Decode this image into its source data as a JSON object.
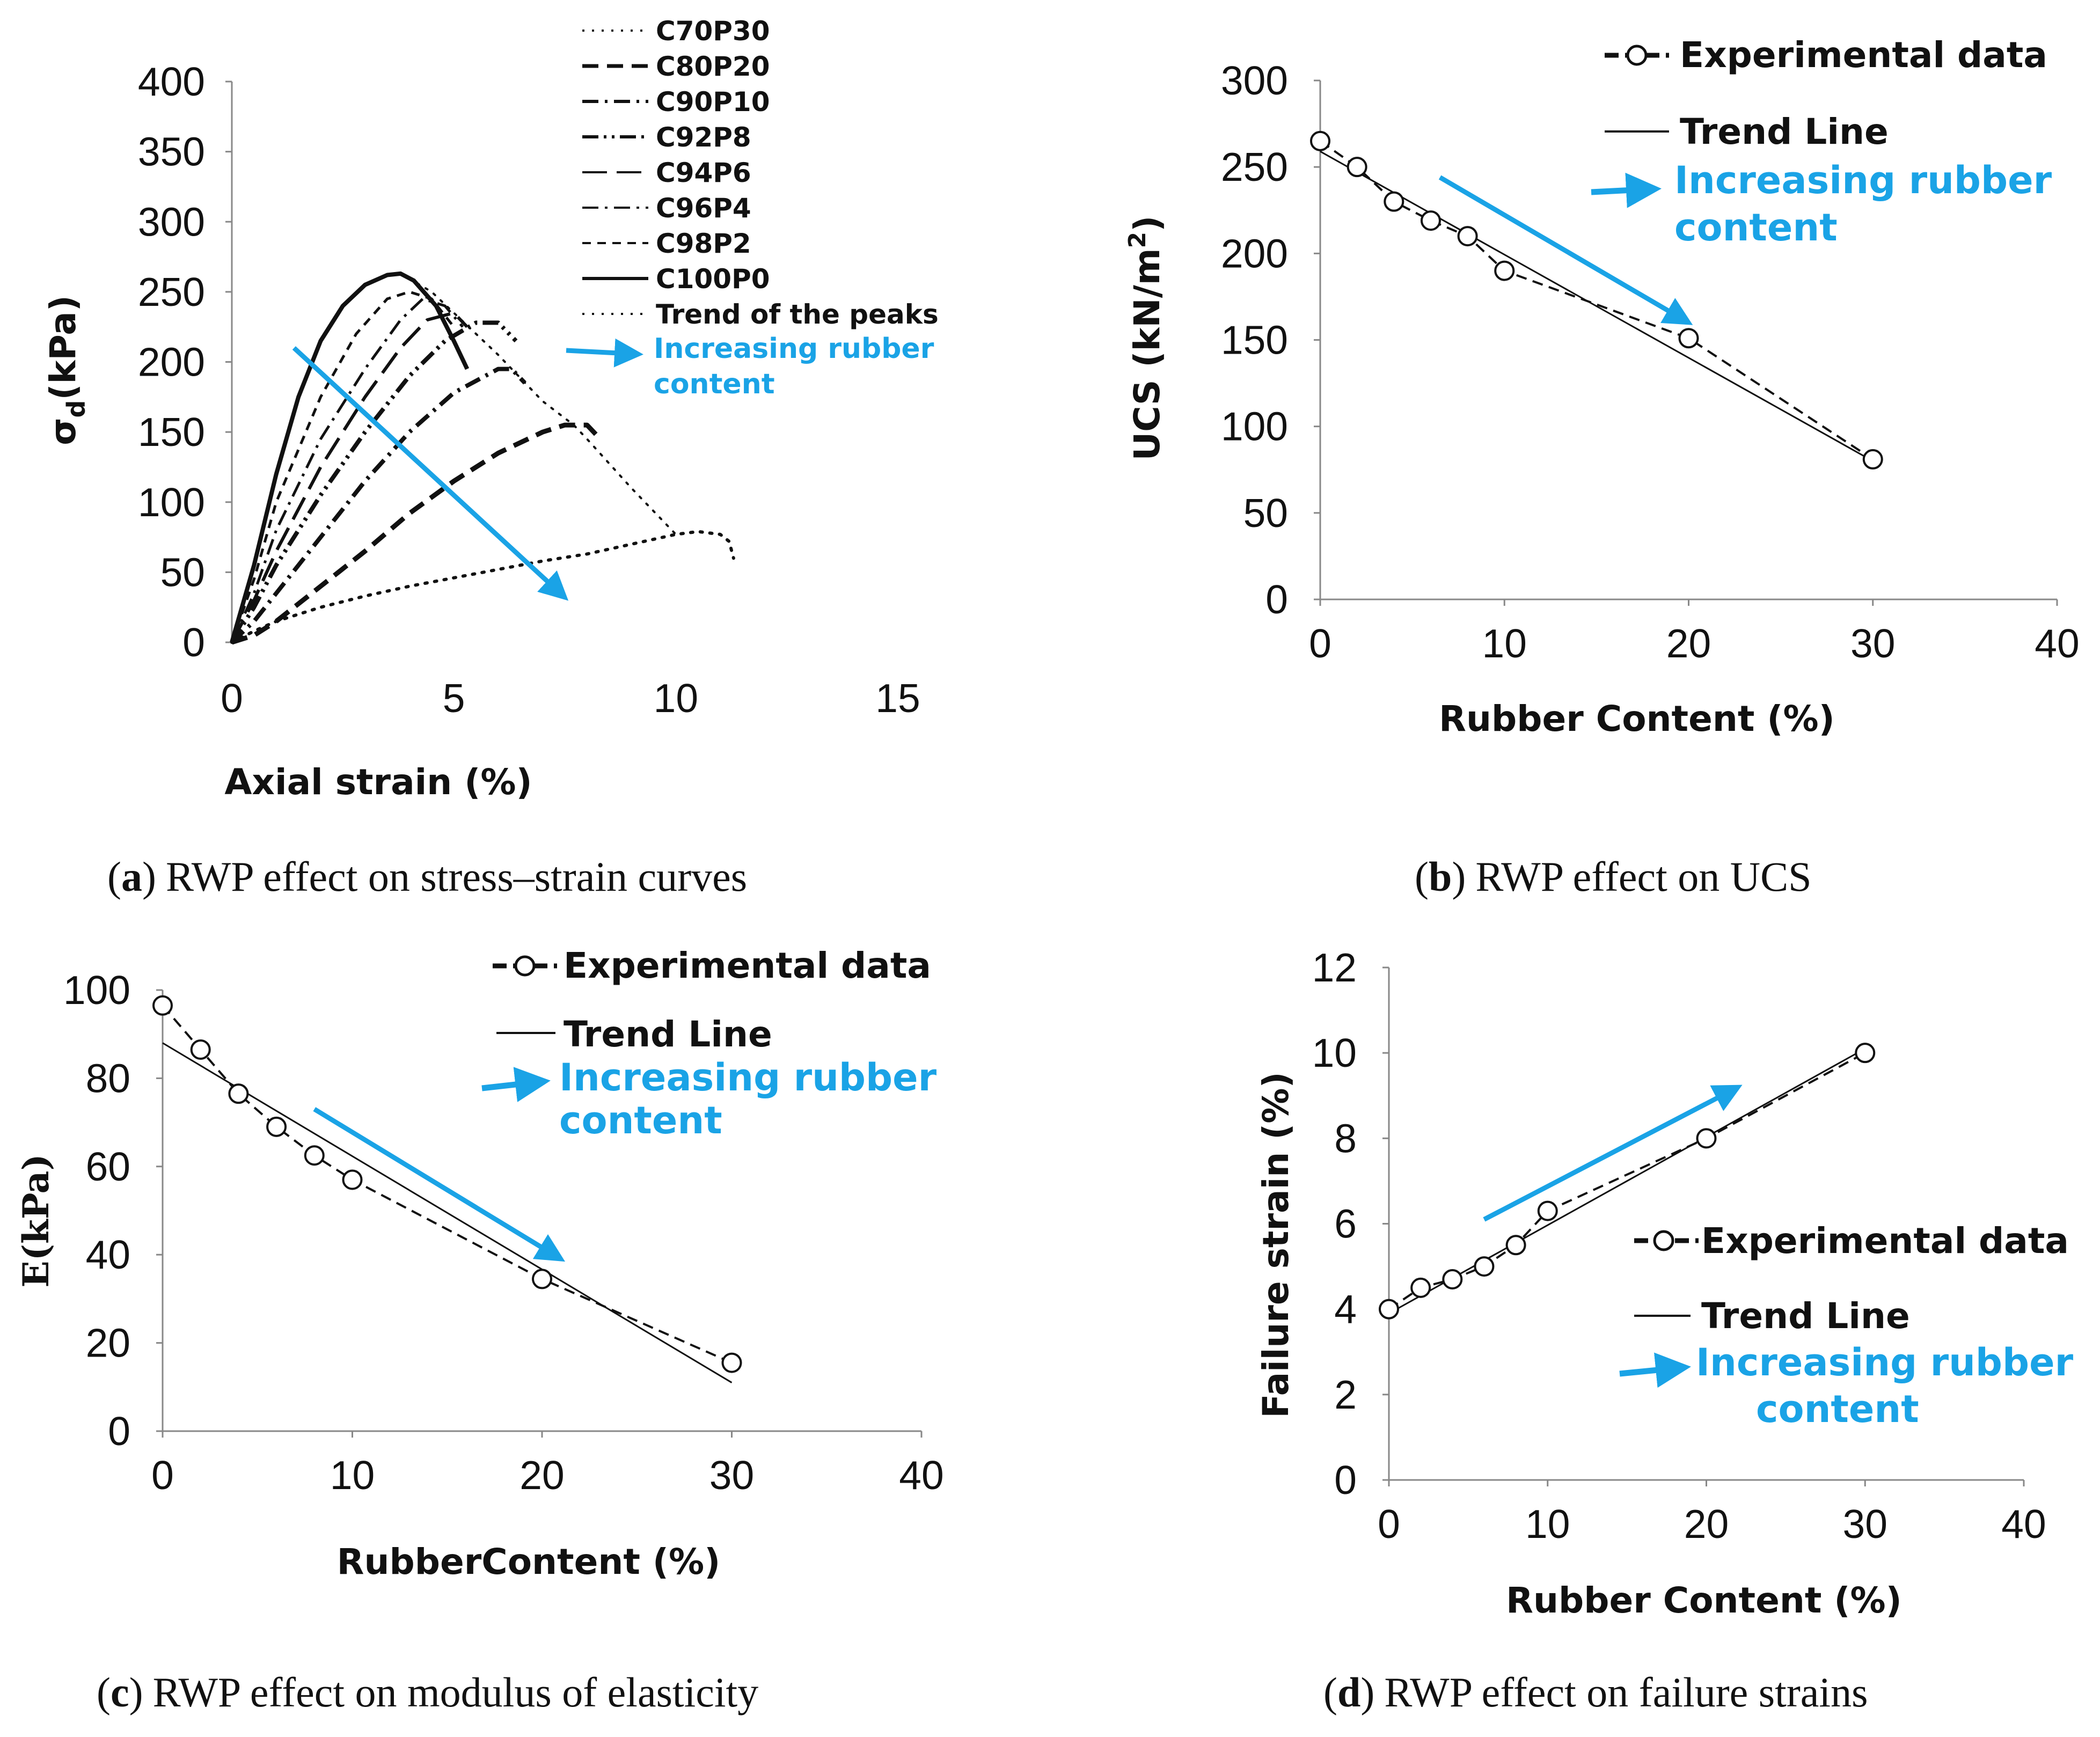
{
  "colors": {
    "arrow": "#1aa3e6",
    "ink": "#111111"
  },
  "chart_data": [
    {
      "id": "a",
      "type": "line",
      "caption_letter": "a",
      "caption_text": "RWP effect on stress–strain curves",
      "xlabel": "Axial strain (%)",
      "ylabel_main": "σ",
      "ylabel_sub": "d",
      "ylabel_rest": "(kPa)",
      "xlim": [
        0,
        15
      ],
      "ylim": [
        0,
        400
      ],
      "xticks": [
        0,
        5,
        10,
        15
      ],
      "yticks": [
        0,
        50,
        100,
        150,
        200,
        250,
        300,
        350,
        400
      ],
      "series": [
        {
          "name": "C70P30",
          "dash": "dot",
          "width": 6,
          "x": [
            0,
            0.5,
            1,
            2,
            3,
            4,
            5,
            6,
            7,
            8,
            9,
            10,
            10.5,
            11,
            11.2,
            11.3
          ],
          "y": [
            0,
            8,
            15,
            25,
            33,
            40,
            46,
            52,
            58,
            63,
            70,
            77,
            79,
            77,
            72,
            60
          ]
        },
        {
          "name": "C80P20",
          "dash": "dash",
          "width": 9,
          "x": [
            0,
            0.5,
            1,
            2,
            3,
            4,
            5,
            6,
            7,
            7.5,
            8,
            8.3
          ],
          "y": [
            0,
            5,
            15,
            40,
            65,
            92,
            115,
            135,
            150,
            155,
            155,
            145
          ]
        },
        {
          "name": "C90P10",
          "dash": "dashdot",
          "width": 8,
          "x": [
            0,
            0.5,
            1,
            2,
            3,
            4,
            5,
            6,
            6.3,
            6.6
          ],
          "y": [
            0,
            15,
            35,
            75,
            115,
            150,
            178,
            195,
            195,
            185
          ]
        },
        {
          "name": "C92P8",
          "dash": "dashdotdot",
          "width": 8,
          "x": [
            0,
            0.5,
            1,
            2,
            3,
            4,
            4.8,
            5.5,
            6,
            6.4
          ],
          "y": [
            0,
            25,
            55,
            105,
            150,
            190,
            215,
            228,
            228,
            215
          ]
        },
        {
          "name": "C94P6",
          "dash": "longdash",
          "width": 6,
          "x": [
            0,
            0.5,
            1,
            2,
            3,
            3.8,
            4.4,
            5,
            5.3
          ],
          "y": [
            0,
            30,
            65,
            125,
            175,
            210,
            230,
            235,
            225
          ]
        },
        {
          "name": "C96P4",
          "dash": "dashdot",
          "width": 5,
          "x": [
            0,
            0.5,
            1,
            2,
            3,
            3.8,
            4.3,
            4.8,
            5.2
          ],
          "y": [
            0,
            35,
            80,
            145,
            195,
            230,
            245,
            240,
            225
          ]
        },
        {
          "name": "C98P2",
          "dash": "shortdash",
          "width": 5,
          "x": [
            0,
            0.5,
            1,
            2,
            2.8,
            3.5,
            4,
            4.5,
            5
          ],
          "y": [
            0,
            45,
            100,
            175,
            220,
            245,
            250,
            245,
            225
          ]
        },
        {
          "name": "C100P0",
          "dash": "solid",
          "width": 8,
          "x": [
            0,
            0.5,
            1,
            1.5,
            2,
            2.5,
            3,
            3.5,
            3.8,
            4.1,
            4.6,
            5,
            5.3
          ],
          "y": [
            0,
            55,
            120,
            175,
            215,
            240,
            255,
            262,
            263,
            258,
            240,
            215,
            195
          ]
        },
        {
          "name": "Trend of the peaks",
          "dash": "dot",
          "width": 4,
          "x": [
            3.8,
            4.5,
            5,
            6,
            7,
            7.7,
            8,
            9,
            10
          ],
          "y": [
            263,
            250,
            235,
            205,
            172,
            155,
            145,
            110,
            77
          ]
        }
      ],
      "note": {
        "text_line1": "Increasing rubber",
        "text_line2": "content"
      },
      "trend_arrow": {
        "from": [
          1.4,
          210
        ],
        "to": [
          7.5,
          32
        ]
      }
    },
    {
      "id": "b",
      "type": "scatter",
      "caption_letter": "b",
      "caption_text": "RWP effect on UCS",
      "xlabel": "Rubber Content (%)",
      "ylabel_main": "UCS (kN/m",
      "ylabel_sup": "2",
      "ylabel_rest": ")",
      "xlim": [
        0,
        40
      ],
      "ylim": [
        0,
        300
      ],
      "xticks": [
        0,
        10,
        20,
        30,
        40
      ],
      "yticks": [
        0,
        50,
        100,
        150,
        200,
        250,
        300
      ],
      "experimental": {
        "name": "Experimental data",
        "x": [
          0,
          2,
          4,
          6,
          8,
          10,
          20,
          30
        ],
        "y": [
          265,
          250,
          230,
          219,
          210,
          190,
          151,
          81
        ]
      },
      "trend": {
        "name": "Trend Line",
        "x": [
          0,
          30
        ],
        "y": [
          259,
          80
        ]
      },
      "note": {
        "text_line1": "Increasing rubber",
        "text_line2": "content"
      },
      "trend_arrow": {
        "from": [
          6.5,
          244
        ],
        "to": [
          20,
          160
        ]
      }
    },
    {
      "id": "c",
      "type": "scatter",
      "caption_letter": "c",
      "caption_text": "RWP effect on modulus of elasticity",
      "xlabel": "RubberContent (%)",
      "ylabel_main": "E(kPa)",
      "xlim": [
        0,
        40
      ],
      "ylim": [
        0,
        100
      ],
      "xticks": [
        0,
        10,
        20,
        30,
        40
      ],
      "yticks": [
        0,
        20,
        40,
        60,
        80,
        100
      ],
      "experimental": {
        "name": "Experimental data",
        "x": [
          0,
          2,
          4,
          6,
          8,
          10,
          20,
          30
        ],
        "y": [
          96.5,
          86.5,
          76.5,
          69,
          62.5,
          57,
          34.5,
          15.5
        ]
      },
      "trend": {
        "name": "Trend Line",
        "x": [
          0,
          30
        ],
        "y": [
          88,
          11
        ]
      },
      "note": {
        "text_line1": "Increasing rubber",
        "text_line2": "content"
      },
      "trend_arrow": {
        "from": [
          8,
          73
        ],
        "to": [
          21,
          39
        ]
      }
    },
    {
      "id": "d",
      "type": "scatter",
      "caption_letter": "d",
      "caption_text": "RWP effect on failure strains",
      "xlabel": "Rubber Content (%)",
      "ylabel_main": "Failure strain (%)",
      "xlim": [
        0,
        40
      ],
      "ylim": [
        0,
        12
      ],
      "xticks": [
        0,
        10,
        20,
        30,
        40
      ],
      "yticks": [
        0,
        2,
        4,
        6,
        8,
        10,
        12
      ],
      "experimental": {
        "name": "Experimental data",
        "x": [
          0,
          2,
          4,
          6,
          8,
          10,
          20,
          30
        ],
        "y": [
          4.0,
          4.5,
          4.7,
          5.0,
          5.5,
          6.3,
          8.0,
          10.0
        ]
      },
      "trend": {
        "name": "Trend Line",
        "x": [
          0,
          30
        ],
        "y": [
          3.9,
          10.1
        ]
      },
      "note": {
        "text_line1": "Increasing rubber",
        "text_line2": "content"
      },
      "trend_arrow": {
        "from": [
          6,
          6.1
        ],
        "to": [
          22,
          9.2
        ]
      }
    }
  ]
}
